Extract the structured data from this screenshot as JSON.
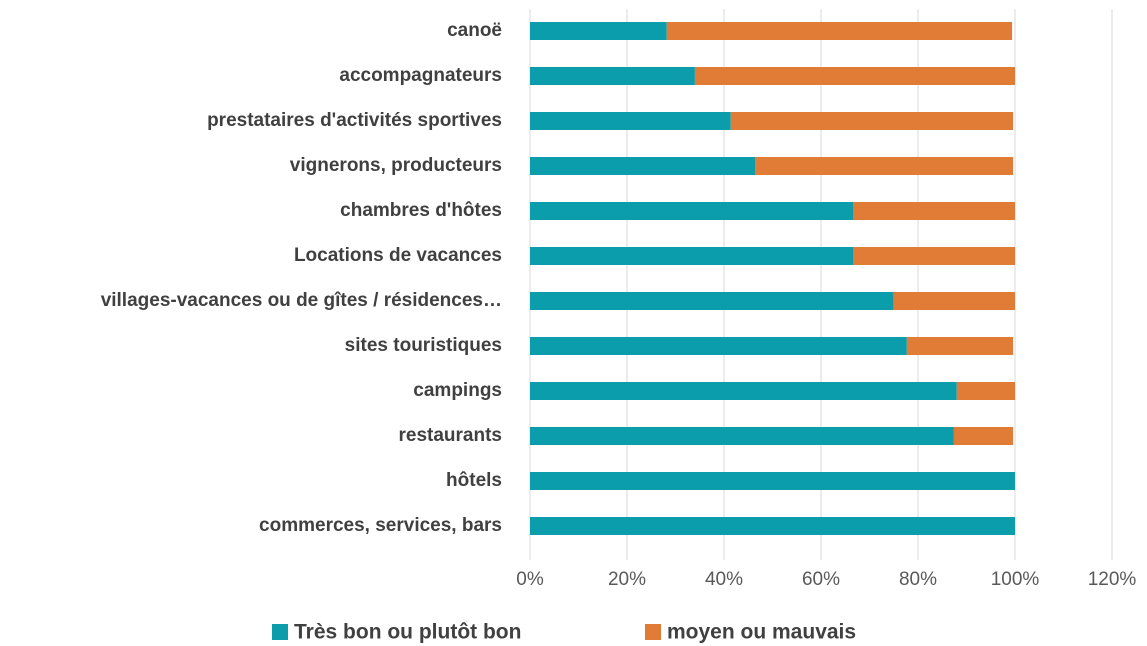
{
  "chart_data": {
    "type": "stacked_barh",
    "categories": [
      "canoë",
      "accompagnateurs",
      "prestataires d'activités sportives",
      "vignerons, producteurs",
      "chambres d'hôtes",
      "Locations de vacances",
      "villages-vacances ou de gîtes /  résidences…",
      "sites touristiques",
      "campings",
      "restaurants",
      "hôtels",
      "commerces, services, bars"
    ],
    "series": [
      {
        "name": "Très bon ou plutôt bon",
        "color": "#0b9dab",
        "values": [
          28.2,
          34,
          41.4,
          46.4,
          66.6,
          66.6,
          75,
          77.7,
          88,
          87.4,
          100,
          100
        ]
      },
      {
        "name": "moyen ou mauvais",
        "color": "#e07c36",
        "values": [
          71.2,
          66,
          58.2,
          53.2,
          33.4,
          33.4,
          25,
          21.9,
          12,
          12.2,
          0,
          0
        ]
      }
    ],
    "xlim": [
      0,
      120
    ],
    "xticks": [
      {
        "value": 0,
        "label": "0%"
      },
      {
        "value": 20,
        "label": "20%"
      },
      {
        "value": 40,
        "label": "40%"
      },
      {
        "value": 60,
        "label": "60%"
      },
      {
        "value": 80,
        "label": "80%"
      },
      {
        "value": 100,
        "label": "100%"
      },
      {
        "value": 120,
        "label": "120%"
      }
    ],
    "grid": true,
    "legend": "bottom"
  }
}
